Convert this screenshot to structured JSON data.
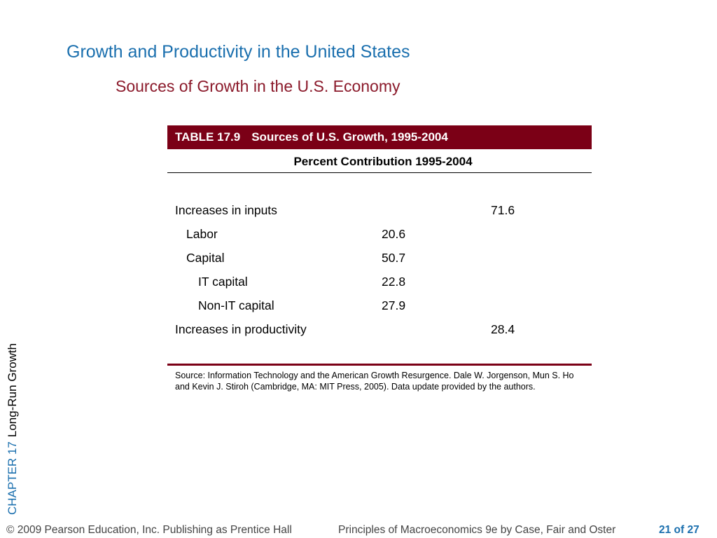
{
  "slide": {
    "title": "Growth and Productivity in the United States",
    "subtitle": "Sources of Growth in the U.S. Economy"
  },
  "table": {
    "number": "TABLE 17.9",
    "caption": "Sources of U.S. Growth, 1995-2004",
    "column_header": "Percent Contribution 1995-2004",
    "rows": [
      {
        "label": "Increases in inputs",
        "sub": "",
        "total": "71.6"
      },
      {
        "label": "Labor",
        "sub": "20.6",
        "total": ""
      },
      {
        "label": "Capital",
        "sub": "50.7",
        "total": ""
      },
      {
        "label": "IT capital",
        "sub": "22.8",
        "total": ""
      },
      {
        "label": "Non-IT capital",
        "sub": "27.9",
        "total": ""
      },
      {
        "label": "Increases in productivity",
        "sub": "",
        "total": "28.4"
      }
    ],
    "source": "Source: Information Technology and the American Growth Resurgence. Dale W. Jorgenson, Mun S. Ho and Kevin J. Stiroh (Cambridge, MA: MIT Press, 2005). Data update provided by the authors."
  },
  "sidebar": {
    "chapter": "CHAPTER 17",
    "topic": "Long-Run Growth"
  },
  "footer": {
    "copyright": "© 2009 Pearson Education, Inc. Publishing as Prentice Hall",
    "book": "Principles of Macroeconomics 9e by Case, Fair and Oster",
    "page": "21 of 27"
  },
  "colors": {
    "title": "#1a6fae",
    "subtitle": "#8b1a2b",
    "table_header_bg": "#7b0016"
  }
}
